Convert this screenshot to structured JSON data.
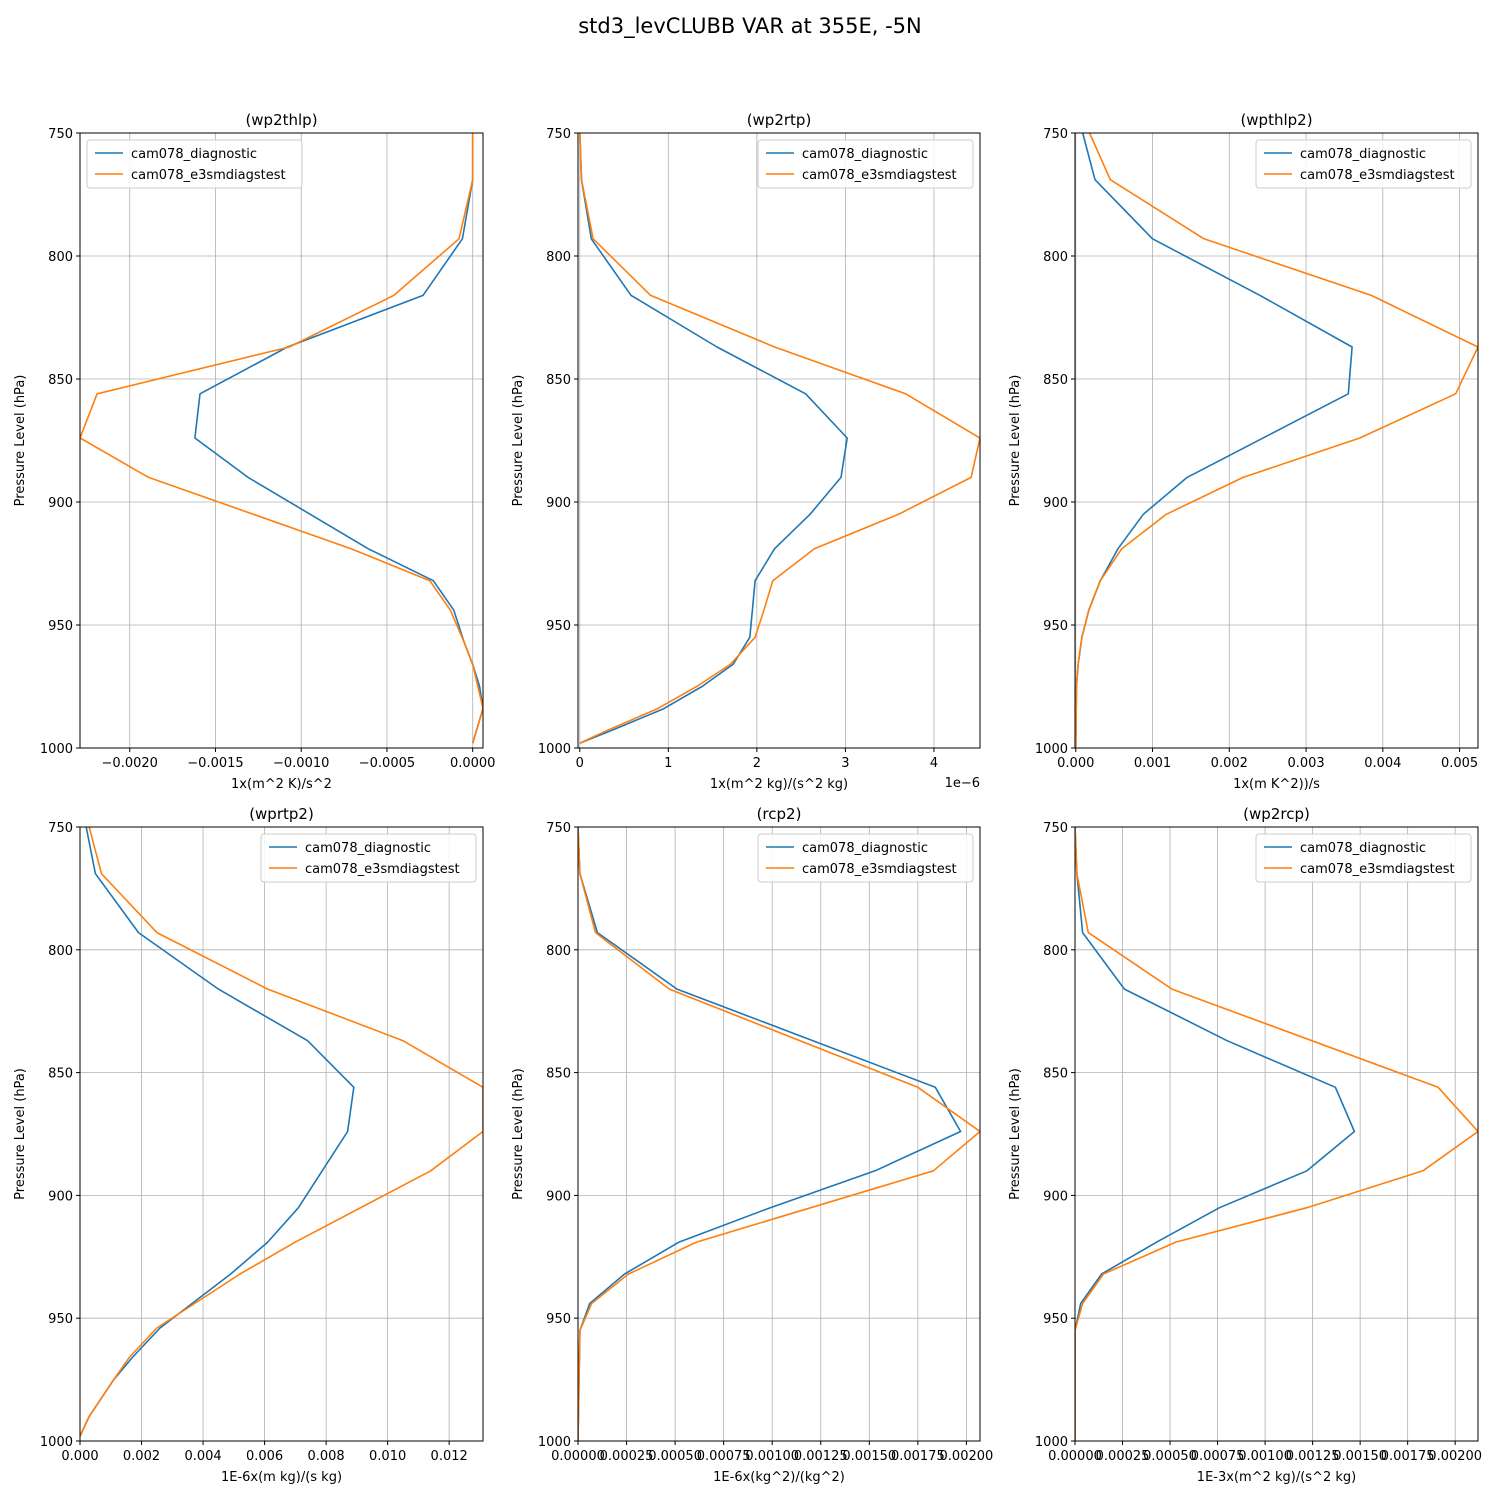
{
  "figure": {
    "suptitle": "std3_levCLUBB VAR at 355E, -5N"
  },
  "colors": {
    "series1": "#1f77b4",
    "series2": "#ff7f0e",
    "grid": "#b0b0b0",
    "axis": "#000000"
  },
  "chart_data": [
    {
      "type": "line",
      "title": "(wp2thlp)",
      "xlabel": "1x(m^2 K)/s^2",
      "ylabel": "Pressure Level (hPa)",
      "xlim": [
        -0.00229,
        6e-05
      ],
      "ylim": [
        1000,
        750
      ],
      "y_inverted": true,
      "grid": true,
      "legend_position": "top-left",
      "xticks": [
        -0.002,
        -0.0015,
        -0.001,
        -0.0005,
        0.0
      ],
      "xtick_labels": [
        "−0.0020",
        "−0.0015",
        "−0.0010",
        "−0.0005",
        "0.0000"
      ],
      "yticks": [
        750,
        800,
        850,
        900,
        950,
        1000
      ],
      "ytick_labels": [
        "750",
        "800",
        "850",
        "900",
        "950",
        "1000"
      ],
      "x_offset_label": "",
      "series": [
        {
          "name": "cam078_diagnostic",
          "points": [
            [
              0.0,
              750
            ],
            [
              0.0,
              769
            ],
            [
              -6e-05,
              793
            ],
            [
              -0.00029,
              816
            ],
            [
              -0.00108,
              837
            ],
            [
              -0.00159,
              856
            ],
            [
              -0.00162,
              874
            ],
            [
              -0.00131,
              890
            ],
            [
              -0.00061,
              919
            ],
            [
              -0.00023,
              932
            ],
            [
              -0.00011,
              944
            ],
            [
              -5e-05,
              957
            ],
            [
              0.0,
              966
            ],
            [
              4e-05,
              975
            ],
            [
              6e-05,
              984
            ],
            [
              0.0,
              998
            ]
          ]
        },
        {
          "name": "cam078_e3smdiagstest",
          "points": [
            [
              0.0,
              750
            ],
            [
              0.0,
              769
            ],
            [
              -8e-05,
              793
            ],
            [
              -0.00046,
              816
            ],
            [
              -0.00107,
              837
            ],
            [
              -0.00219,
              856
            ],
            [
              -0.00229,
              874
            ],
            [
              -0.00189,
              890
            ],
            [
              -0.00071,
              919
            ],
            [
              -0.00025,
              932
            ],
            [
              -0.00013,
              944
            ],
            [
              -5e-05,
              957
            ],
            [
              0.0,
              966
            ],
            [
              3e-05,
              975
            ],
            [
              6e-05,
              984
            ],
            [
              0.0,
              998
            ]
          ]
        }
      ]
    },
    {
      "type": "line",
      "title": "(wp2rtp)",
      "xlabel": "1x(m^2 kg)/(s^2 kg)",
      "ylabel": "Pressure Level (hPa)",
      "xlim": [
        -0.02,
        4.52
      ],
      "ylim": [
        1000,
        750
      ],
      "y_inverted": true,
      "grid": true,
      "legend_position": "top-right",
      "xticks": [
        0,
        1,
        2,
        3,
        4
      ],
      "xtick_labels": [
        "0",
        "1",
        "2",
        "3",
        "4"
      ],
      "yticks": [
        750,
        800,
        850,
        900,
        950,
        1000
      ],
      "ytick_labels": [
        "750",
        "800",
        "850",
        "900",
        "950",
        "1000"
      ],
      "x_offset_label": "1e−6",
      "series": [
        {
          "name": "cam078_diagnostic",
          "points": [
            [
              0.0,
              750
            ],
            [
              0.02,
              769
            ],
            [
              0.13,
              793
            ],
            [
              0.58,
              816
            ],
            [
              1.55,
              837
            ],
            [
              2.55,
              856
            ],
            [
              3.02,
              874
            ],
            [
              2.95,
              890
            ],
            [
              2.6,
              905
            ],
            [
              2.2,
              919
            ],
            [
              1.98,
              932
            ],
            [
              1.95,
              944
            ],
            [
              1.92,
              955
            ],
            [
              1.73,
              966
            ],
            [
              1.38,
              975
            ],
            [
              0.95,
              984
            ],
            [
              0.35,
              993
            ],
            [
              0.0,
              998
            ]
          ]
        },
        {
          "name": "cam078_e3smdiagstest",
          "points": [
            [
              0.0,
              750
            ],
            [
              0.02,
              769
            ],
            [
              0.15,
              793
            ],
            [
              0.8,
              816
            ],
            [
              2.2,
              837
            ],
            [
              3.68,
              856
            ],
            [
              4.52,
              874
            ],
            [
              4.42,
              890
            ],
            [
              3.6,
              905
            ],
            [
              2.65,
              919
            ],
            [
              2.18,
              932
            ],
            [
              2.08,
              944
            ],
            [
              1.98,
              955
            ],
            [
              1.7,
              966
            ],
            [
              1.32,
              975
            ],
            [
              0.88,
              984
            ],
            [
              0.3,
              993
            ],
            [
              0.0,
              998
            ]
          ]
        }
      ]
    },
    {
      "type": "line",
      "title": "(wpthlp2)",
      "xlabel": "1x(m K^2))/s",
      "ylabel": "Pressure Level (hPa)",
      "xlim": [
        -1e-05,
        0.00524
      ],
      "ylim": [
        1000,
        750
      ],
      "y_inverted": true,
      "grid": true,
      "legend_position": "top-right",
      "xticks": [
        0.0,
        0.001,
        0.002,
        0.003,
        0.004,
        0.005
      ],
      "xtick_labels": [
        "0.000",
        "0.001",
        "0.002",
        "0.003",
        "0.004",
        "0.005"
      ],
      "yticks": [
        750,
        800,
        850,
        900,
        950,
        1000
      ],
      "ytick_labels": [
        "750",
        "800",
        "850",
        "900",
        "950",
        "1000"
      ],
      "x_offset_label": "",
      "series": [
        {
          "name": "cam078_diagnostic",
          "points": [
            [
              9e-05,
              750
            ],
            [
              0.00025,
              769
            ],
            [
              0.001,
              793
            ],
            [
              0.0024,
              816
            ],
            [
              0.0036,
              837
            ],
            [
              0.00355,
              856
            ],
            [
              0.00145,
              890
            ],
            [
              0.00088,
              905
            ],
            [
              0.00055,
              919
            ],
            [
              0.00032,
              932
            ],
            [
              0.00017,
              944
            ],
            [
              8e-05,
              955
            ],
            [
              3e-05,
              966
            ],
            [
              1e-05,
              975
            ],
            [
              0.0,
              1000
            ]
          ]
        },
        {
          "name": "cam078_e3smdiagstest",
          "points": [
            [
              0.00018,
              750
            ],
            [
              0.00045,
              769
            ],
            [
              0.00167,
              793
            ],
            [
              0.00385,
              816
            ],
            [
              0.00524,
              837
            ],
            [
              0.00495,
              856
            ],
            [
              0.0037,
              874
            ],
            [
              0.00218,
              890
            ],
            [
              0.00118,
              905
            ],
            [
              0.0006,
              919
            ],
            [
              0.00032,
              932
            ],
            [
              0.00017,
              944
            ],
            [
              8e-05,
              955
            ],
            [
              3e-05,
              966
            ],
            [
              1e-05,
              975
            ],
            [
              0.0,
              1000
            ]
          ]
        }
      ]
    },
    {
      "type": "line",
      "title": "(wprtp2)",
      "xlabel": "1E-6x(m kg)/(s kg)",
      "ylabel": "Pressure Level (hPa)",
      "xlim": [
        0.0,
        0.0131
      ],
      "ylim": [
        1000,
        750
      ],
      "y_inverted": true,
      "grid": true,
      "legend_position": "top-right",
      "xticks": [
        0.0,
        0.002,
        0.004,
        0.006,
        0.008,
        0.01,
        0.012
      ],
      "xtick_labels": [
        "0.000",
        "0.002",
        "0.004",
        "0.006",
        "0.008",
        "0.010",
        "0.012"
      ],
      "yticks": [
        750,
        800,
        850,
        900,
        950,
        1000
      ],
      "ytick_labels": [
        "750",
        "800",
        "850",
        "900",
        "950",
        "1000"
      ],
      "x_offset_label": "",
      "series": [
        {
          "name": "cam078_diagnostic",
          "points": [
            [
              0.0002,
              750
            ],
            [
              0.0005,
              769
            ],
            [
              0.0019,
              793
            ],
            [
              0.0045,
              816
            ],
            [
              0.0074,
              837
            ],
            [
              0.0089,
              856
            ],
            [
              0.0087,
              874
            ],
            [
              0.0071,
              905
            ],
            [
              0.0061,
              919
            ],
            [
              0.0049,
              932
            ],
            [
              0.0026,
              954
            ],
            [
              0.0017,
              966
            ],
            [
              0.0011,
              975
            ],
            [
              0.0003,
              990
            ],
            [
              0.0,
              998
            ]
          ]
        },
        {
          "name": "cam078_e3smdiagstest",
          "points": [
            [
              0.0003,
              750
            ],
            [
              0.0007,
              769
            ],
            [
              0.0025,
              793
            ],
            [
              0.0061,
              816
            ],
            [
              0.0105,
              837
            ],
            [
              0.0131,
              856
            ],
            [
              0.0131,
              874
            ],
            [
              0.0114,
              890
            ],
            [
              0.007,
              919
            ],
            [
              0.0052,
              932
            ],
            [
              0.0025,
              954
            ],
            [
              0.0016,
              966
            ],
            [
              0.0011,
              975
            ],
            [
              0.0003,
              990
            ],
            [
              0.0,
              998
            ]
          ]
        }
      ]
    },
    {
      "type": "line",
      "title": "(rcp2)",
      "xlabel": "1E-6x(kg^2)/(kg^2)",
      "ylabel": "Pressure Level (hPa)",
      "xlim": [
        0.0,
        0.00207
      ],
      "ylim": [
        1000,
        750
      ],
      "y_inverted": true,
      "grid": true,
      "legend_position": "top-right",
      "xticks": [
        0.0,
        0.00025,
        0.0005,
        0.00075,
        0.001,
        0.00125,
        0.0015,
        0.00175,
        0.002
      ],
      "xtick_labels": [
        "0.00000",
        "0.00025",
        "0.00050",
        "0.00075",
        "0.00100",
        "0.00125",
        "0.00150",
        "0.00175",
        "0.00200"
      ],
      "yticks": [
        750,
        800,
        850,
        900,
        950,
        1000
      ],
      "ytick_labels": [
        "750",
        "800",
        "850",
        "900",
        "950",
        "1000"
      ],
      "x_offset_label": "",
      "series": [
        {
          "name": "cam078_diagnostic",
          "points": [
            [
              0.0,
              750
            ],
            [
              1e-05,
              769
            ],
            [
              0.0001,
              793
            ],
            [
              0.00051,
              816
            ],
            [
              0.00184,
              856
            ],
            [
              0.00197,
              874
            ],
            [
              0.00153,
              890
            ],
            [
              0.00099,
              905
            ],
            [
              0.00052,
              919
            ],
            [
              0.00024,
              932
            ],
            [
              6e-05,
              944
            ],
            [
              1e-05,
              955
            ],
            [
              0.0,
              1000
            ]
          ]
        },
        {
          "name": "cam078_e3smdiagstest",
          "points": [
            [
              0.0,
              750
            ],
            [
              1e-05,
              769
            ],
            [
              9e-05,
              793
            ],
            [
              0.00047,
              816
            ],
            [
              0.00175,
              856
            ],
            [
              0.00207,
              874
            ],
            [
              0.00183,
              890
            ],
            [
              0.00061,
              919
            ],
            [
              0.00026,
              932
            ],
            [
              7e-05,
              944
            ],
            [
              1e-05,
              955
            ],
            [
              0.0,
              1000
            ]
          ]
        }
      ]
    },
    {
      "type": "line",
      "title": "(wp2rcp)",
      "xlabel": "1E-3x(m^2 kg)/(s^2 kg)",
      "ylabel": "Pressure Level (hPa)",
      "xlim": [
        0.0,
        0.00212
      ],
      "ylim": [
        1000,
        750
      ],
      "y_inverted": true,
      "grid": true,
      "legend_position": "top-right",
      "xticks": [
        0.0,
        0.00025,
        0.0005,
        0.00075,
        0.001,
        0.00125,
        0.0015,
        0.00175,
        0.002
      ],
      "xtick_labels": [
        "0.00000",
        "0.00025",
        "0.00050",
        "0.00075",
        "0.00100",
        "0.00125",
        "0.00150",
        "0.00175",
        "0.00200"
      ],
      "yticks": [
        750,
        800,
        850,
        900,
        950,
        1000
      ],
      "ytick_labels": [
        "750",
        "800",
        "850",
        "900",
        "950",
        "1000"
      ],
      "x_offset_label": "",
      "series": [
        {
          "name": "cam078_diagnostic",
          "points": [
            [
              0.0,
              750
            ],
            [
              1e-05,
              769
            ],
            [
              4e-05,
              793
            ],
            [
              0.00026,
              816
            ],
            [
              0.0008,
              837
            ],
            [
              0.00137,
              856
            ],
            [
              0.00147,
              874
            ],
            [
              0.00122,
              890
            ],
            [
              0.00076,
              905
            ],
            [
              0.00043,
              919
            ],
            [
              0.00014,
              932
            ],
            [
              3e-05,
              944
            ],
            [
              0.0,
              955
            ],
            [
              0.0,
              1000
            ]
          ]
        },
        {
          "name": "cam078_e3smdiagstest",
          "points": [
            [
              0.0,
              750
            ],
            [
              1e-05,
              769
            ],
            [
              7e-05,
              793
            ],
            [
              0.00051,
              816
            ],
            [
              0.00191,
              856
            ],
            [
              0.00212,
              874
            ],
            [
              0.00183,
              890
            ],
            [
              0.00122,
              905
            ],
            [
              0.00053,
              919
            ],
            [
              0.00015,
              932
            ],
            [
              4e-05,
              944
            ],
            [
              0.0,
              955
            ],
            [
              0.0,
              1000
            ]
          ]
        }
      ]
    }
  ]
}
